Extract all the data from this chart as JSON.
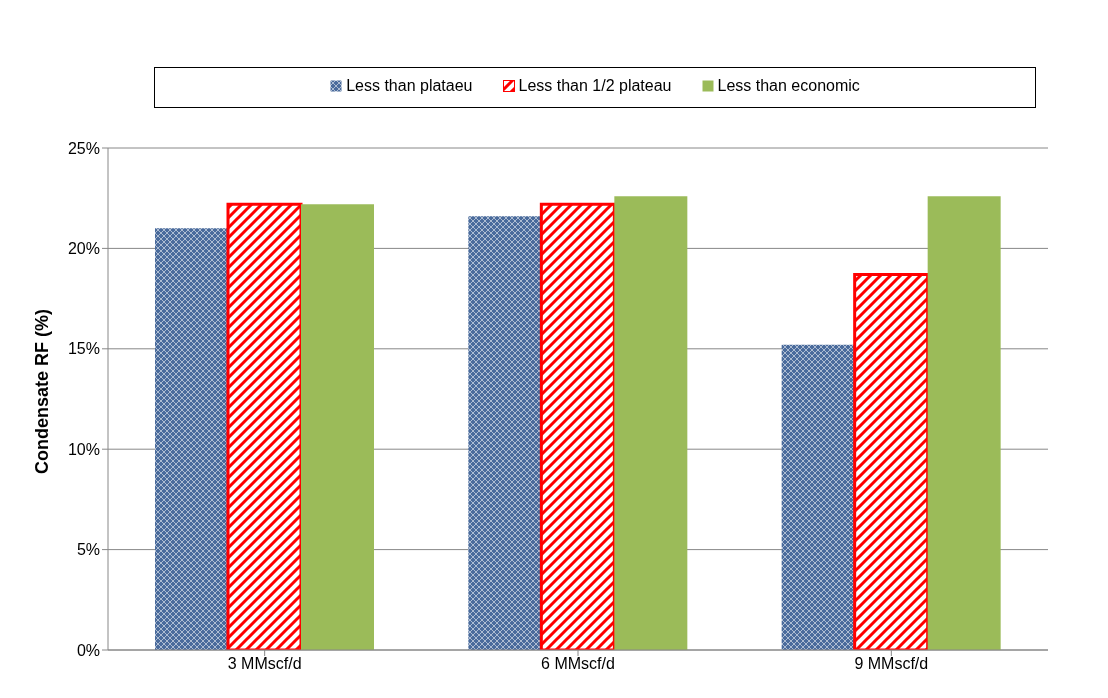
{
  "chart_data": {
    "type": "bar",
    "ylabel": "Condensate RF (%)",
    "categories": [
      "3 MMscf/d",
      "6 MMscf/d",
      "9 MMscf/d"
    ],
    "series": [
      {
        "name": "Less than plataeu",
        "color": "#4a6b9c",
        "values": [
          21.0,
          21.6,
          15.2
        ]
      },
      {
        "name": "Less than 1/2 plateau",
        "color": "#ff0000",
        "values": [
          22.2,
          22.2,
          18.7
        ]
      },
      {
        "name": "Less than economic",
        "color": "#9bbb59",
        "values": [
          22.2,
          22.6,
          22.6
        ]
      }
    ],
    "ylim": [
      0,
      25
    ],
    "yticks": [
      {
        "value": 0,
        "label": "0%"
      },
      {
        "value": 5,
        "label": "5%"
      },
      {
        "value": 10,
        "label": "10%"
      },
      {
        "value": 15,
        "label": "15%"
      },
      {
        "value": 20,
        "label": "20%"
      },
      {
        "value": 25,
        "label": "25%"
      }
    ],
    "grid": "y",
    "legend": "top"
  }
}
